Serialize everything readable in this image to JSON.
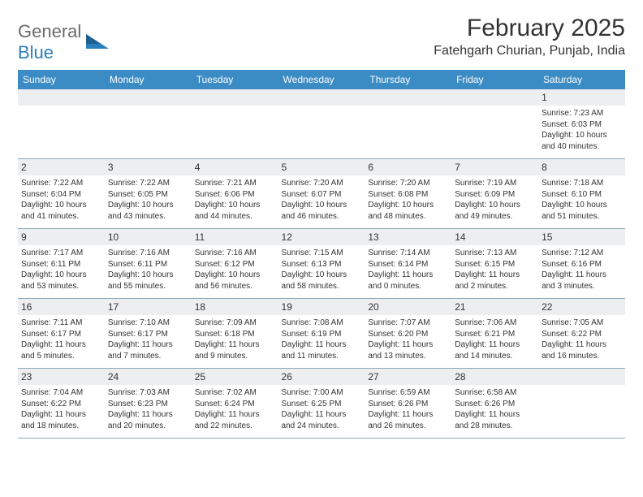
{
  "logo": {
    "text1": "General",
    "text2": "Blue"
  },
  "title": "February 2025",
  "subtitle": "Fatehgarh Churian, Punjab, India",
  "dayHeaders": [
    "Sunday",
    "Monday",
    "Tuesday",
    "Wednesday",
    "Thursday",
    "Friday",
    "Saturday"
  ],
  "colors": {
    "headerBg": "#3b8bc4",
    "headerText": "#ffffff",
    "dayNumBg": "#eceef0",
    "border": "#8aa8bb",
    "logoGray": "#6b6b6b",
    "logoBlue": "#2a7fbf"
  },
  "weeks": [
    [
      {
        "num": "",
        "sunrise": "",
        "sunset": "",
        "daylight": ""
      },
      {
        "num": "",
        "sunrise": "",
        "sunset": "",
        "daylight": ""
      },
      {
        "num": "",
        "sunrise": "",
        "sunset": "",
        "daylight": ""
      },
      {
        "num": "",
        "sunrise": "",
        "sunset": "",
        "daylight": ""
      },
      {
        "num": "",
        "sunrise": "",
        "sunset": "",
        "daylight": ""
      },
      {
        "num": "",
        "sunrise": "",
        "sunset": "",
        "daylight": ""
      },
      {
        "num": "1",
        "sunrise": "Sunrise: 7:23 AM",
        "sunset": "Sunset: 6:03 PM",
        "daylight": "Daylight: 10 hours and 40 minutes."
      }
    ],
    [
      {
        "num": "2",
        "sunrise": "Sunrise: 7:22 AM",
        "sunset": "Sunset: 6:04 PM",
        "daylight": "Daylight: 10 hours and 41 minutes."
      },
      {
        "num": "3",
        "sunrise": "Sunrise: 7:22 AM",
        "sunset": "Sunset: 6:05 PM",
        "daylight": "Daylight: 10 hours and 43 minutes."
      },
      {
        "num": "4",
        "sunrise": "Sunrise: 7:21 AM",
        "sunset": "Sunset: 6:06 PM",
        "daylight": "Daylight: 10 hours and 44 minutes."
      },
      {
        "num": "5",
        "sunrise": "Sunrise: 7:20 AM",
        "sunset": "Sunset: 6:07 PM",
        "daylight": "Daylight: 10 hours and 46 minutes."
      },
      {
        "num": "6",
        "sunrise": "Sunrise: 7:20 AM",
        "sunset": "Sunset: 6:08 PM",
        "daylight": "Daylight: 10 hours and 48 minutes."
      },
      {
        "num": "7",
        "sunrise": "Sunrise: 7:19 AM",
        "sunset": "Sunset: 6:09 PM",
        "daylight": "Daylight: 10 hours and 49 minutes."
      },
      {
        "num": "8",
        "sunrise": "Sunrise: 7:18 AM",
        "sunset": "Sunset: 6:10 PM",
        "daylight": "Daylight: 10 hours and 51 minutes."
      }
    ],
    [
      {
        "num": "9",
        "sunrise": "Sunrise: 7:17 AM",
        "sunset": "Sunset: 6:11 PM",
        "daylight": "Daylight: 10 hours and 53 minutes."
      },
      {
        "num": "10",
        "sunrise": "Sunrise: 7:16 AM",
        "sunset": "Sunset: 6:11 PM",
        "daylight": "Daylight: 10 hours and 55 minutes."
      },
      {
        "num": "11",
        "sunrise": "Sunrise: 7:16 AM",
        "sunset": "Sunset: 6:12 PM",
        "daylight": "Daylight: 10 hours and 56 minutes."
      },
      {
        "num": "12",
        "sunrise": "Sunrise: 7:15 AM",
        "sunset": "Sunset: 6:13 PM",
        "daylight": "Daylight: 10 hours and 58 minutes."
      },
      {
        "num": "13",
        "sunrise": "Sunrise: 7:14 AM",
        "sunset": "Sunset: 6:14 PM",
        "daylight": "Daylight: 11 hours and 0 minutes."
      },
      {
        "num": "14",
        "sunrise": "Sunrise: 7:13 AM",
        "sunset": "Sunset: 6:15 PM",
        "daylight": "Daylight: 11 hours and 2 minutes."
      },
      {
        "num": "15",
        "sunrise": "Sunrise: 7:12 AM",
        "sunset": "Sunset: 6:16 PM",
        "daylight": "Daylight: 11 hours and 3 minutes."
      }
    ],
    [
      {
        "num": "16",
        "sunrise": "Sunrise: 7:11 AM",
        "sunset": "Sunset: 6:17 PM",
        "daylight": "Daylight: 11 hours and 5 minutes."
      },
      {
        "num": "17",
        "sunrise": "Sunrise: 7:10 AM",
        "sunset": "Sunset: 6:17 PM",
        "daylight": "Daylight: 11 hours and 7 minutes."
      },
      {
        "num": "18",
        "sunrise": "Sunrise: 7:09 AM",
        "sunset": "Sunset: 6:18 PM",
        "daylight": "Daylight: 11 hours and 9 minutes."
      },
      {
        "num": "19",
        "sunrise": "Sunrise: 7:08 AM",
        "sunset": "Sunset: 6:19 PM",
        "daylight": "Daylight: 11 hours and 11 minutes."
      },
      {
        "num": "20",
        "sunrise": "Sunrise: 7:07 AM",
        "sunset": "Sunset: 6:20 PM",
        "daylight": "Daylight: 11 hours and 13 minutes."
      },
      {
        "num": "21",
        "sunrise": "Sunrise: 7:06 AM",
        "sunset": "Sunset: 6:21 PM",
        "daylight": "Daylight: 11 hours and 14 minutes."
      },
      {
        "num": "22",
        "sunrise": "Sunrise: 7:05 AM",
        "sunset": "Sunset: 6:22 PM",
        "daylight": "Daylight: 11 hours and 16 minutes."
      }
    ],
    [
      {
        "num": "23",
        "sunrise": "Sunrise: 7:04 AM",
        "sunset": "Sunset: 6:22 PM",
        "daylight": "Daylight: 11 hours and 18 minutes."
      },
      {
        "num": "24",
        "sunrise": "Sunrise: 7:03 AM",
        "sunset": "Sunset: 6:23 PM",
        "daylight": "Daylight: 11 hours and 20 minutes."
      },
      {
        "num": "25",
        "sunrise": "Sunrise: 7:02 AM",
        "sunset": "Sunset: 6:24 PM",
        "daylight": "Daylight: 11 hours and 22 minutes."
      },
      {
        "num": "26",
        "sunrise": "Sunrise: 7:00 AM",
        "sunset": "Sunset: 6:25 PM",
        "daylight": "Daylight: 11 hours and 24 minutes."
      },
      {
        "num": "27",
        "sunrise": "Sunrise: 6:59 AM",
        "sunset": "Sunset: 6:26 PM",
        "daylight": "Daylight: 11 hours and 26 minutes."
      },
      {
        "num": "28",
        "sunrise": "Sunrise: 6:58 AM",
        "sunset": "Sunset: 6:26 PM",
        "daylight": "Daylight: 11 hours and 28 minutes."
      },
      {
        "num": "",
        "sunrise": "",
        "sunset": "",
        "daylight": ""
      }
    ]
  ]
}
